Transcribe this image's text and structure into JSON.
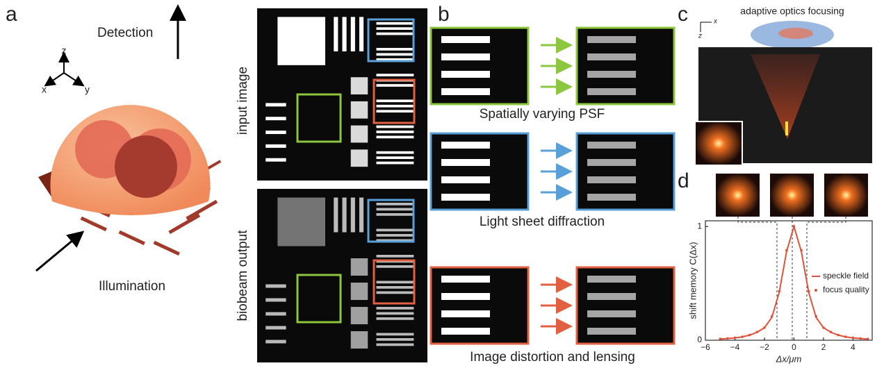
{
  "panel_a": {
    "label": "a",
    "detection": "Detection",
    "illumination": "Illumination",
    "axis_z": "z",
    "axis_x": "x",
    "axis_y": "y",
    "input_label": "input image",
    "output_label": "biobeam output"
  },
  "panel_b": {
    "label": "b",
    "captions": [
      "Spatially varying PSF",
      "Light sheet diffraction",
      "Image distortion and lensing"
    ]
  },
  "panel_c": {
    "label": "c",
    "title": "adaptive optics focusing",
    "axis_x": "x",
    "axis_z": "z"
  },
  "panel_d": {
    "label": "d",
    "chart_data": {
      "type": "line",
      "xlabel": "Δx/μm",
      "ylabel": "shift memory C(Δx)",
      "xlim": [
        -6,
        5.3
      ],
      "ylim": [
        0,
        1.05
      ],
      "xticks": [
        {
          "value": -6,
          "label": "−6"
        },
        {
          "value": -4,
          "label": "−4"
        },
        {
          "value": -2,
          "label": "−2"
        },
        0,
        2,
        4
      ],
      "yticks": [
        0,
        1
      ],
      "x": [
        -5,
        -4.5,
        -4,
        -3.5,
        -3,
        -2.5,
        -2,
        -1.5,
        -1,
        -0.5,
        0,
        0.5,
        1,
        1.5,
        2,
        2.5,
        3,
        3.5,
        4,
        4.5,
        5
      ],
      "series": [
        {
          "name": "speckle field",
          "color": "#e0503a",
          "style": "line",
          "values": [
            0.01,
            0.015,
            0.02,
            0.03,
            0.045,
            0.07,
            0.11,
            0.2,
            0.42,
            0.78,
            1,
            0.78,
            0.42,
            0.2,
            0.11,
            0.07,
            0.045,
            0.03,
            0.02,
            0.015,
            0.01
          ]
        },
        {
          "name": "focus quality",
          "color": "#e0503a",
          "style": "dots",
          "values": [
            0.012,
            0.016,
            0.022,
            0.03,
            0.046,
            0.072,
            0.11,
            0.21,
            0.43,
            0.79,
            1,
            0.79,
            0.43,
            0.21,
            0.11,
            0.072,
            0.046,
            0.03,
            0.022,
            0.016,
            0.012
          ]
        }
      ]
    }
  }
}
